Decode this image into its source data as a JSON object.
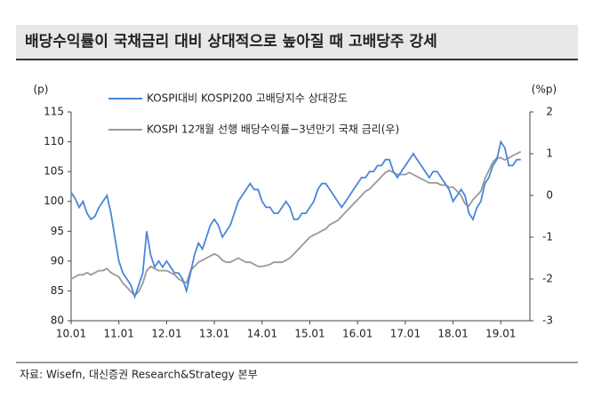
{
  "title": "배당수익률이 국채금리 대비 상대적으로 높아질 때 고배당주 강세",
  "source": "자료: Wisefn, 대신증권 Research&Strategy 본부",
  "chart_data": {
    "type": "line",
    "y_label": "(p)",
    "y2_label": "(%p)",
    "x": [
      "10.01",
      "10.02",
      "10.03",
      "10.04",
      "10.05",
      "10.06",
      "10.07",
      "10.08",
      "10.09",
      "10.10",
      "10.11",
      "10.12",
      "11.01",
      "11.02",
      "11.03",
      "11.04",
      "11.05",
      "11.06",
      "11.07",
      "11.08",
      "11.09",
      "11.10",
      "11.11",
      "11.12",
      "12.01",
      "12.02",
      "12.03",
      "12.04",
      "12.05",
      "12.06",
      "12.07",
      "12.08",
      "12.09",
      "12.10",
      "12.11",
      "12.12",
      "13.01",
      "13.02",
      "13.03",
      "13.04",
      "13.05",
      "13.06",
      "13.07",
      "13.08",
      "13.09",
      "13.10",
      "13.11",
      "13.12",
      "14.01",
      "14.02",
      "14.03",
      "14.04",
      "14.05",
      "14.06",
      "14.07",
      "14.08",
      "14.09",
      "14.10",
      "14.11",
      "14.12",
      "15.01",
      "15.02",
      "15.03",
      "15.04",
      "15.05",
      "15.06",
      "15.07",
      "15.08",
      "15.09",
      "15.10",
      "15.11",
      "15.12",
      "16.01",
      "16.02",
      "16.03",
      "16.04",
      "16.05",
      "16.06",
      "16.07",
      "16.08",
      "16.09",
      "16.10",
      "16.11",
      "16.12",
      "17.01",
      "17.02",
      "17.03",
      "17.04",
      "17.05",
      "17.06",
      "17.07",
      "17.08",
      "17.09",
      "17.10",
      "17.11",
      "17.12",
      "18.01",
      "18.02",
      "18.03",
      "18.04",
      "18.05",
      "18.06",
      "18.07",
      "18.08",
      "18.09",
      "18.10",
      "18.11",
      "18.12",
      "19.01",
      "19.02",
      "19.03",
      "19.04",
      "19.05",
      "19.06"
    ],
    "xticks": [
      "10.01",
      "11.01",
      "12.01",
      "13.01",
      "14.01",
      "15.01",
      "16.01",
      "17.01",
      "18.01",
      "19.01"
    ],
    "ylim": [
      80,
      115
    ],
    "yticks": [
      80,
      85,
      90,
      95,
      100,
      105,
      110,
      115
    ],
    "y2lim": [
      -3,
      2
    ],
    "y2ticks": [
      -3,
      -2,
      -1,
      0,
      1,
      2
    ],
    "series": [
      {
        "name": "KOSPI대비 KOSPI200 고배당지수 상대강도",
        "color": "#4a86d8",
        "values": [
          101.5,
          100.5,
          99,
          100,
          98,
          97,
          97.5,
          99,
          100,
          101,
          98,
          94,
          90,
          88,
          87,
          86,
          84,
          86,
          88,
          95,
          91,
          89,
          90,
          89,
          90,
          89,
          88,
          88,
          87,
          85,
          88,
          91,
          93,
          92,
          94,
          96,
          97,
          96,
          94,
          95,
          96,
          98,
          100,
          101,
          102,
          103,
          102,
          102,
          100,
          99,
          99,
          98,
          98,
          99,
          100,
          99,
          97,
          97,
          98,
          98,
          99,
          100,
          102,
          103,
          103,
          102,
          101,
          100,
          99,
          100,
          101,
          102,
          103,
          104,
          104,
          105,
          105,
          106,
          106,
          107,
          107,
          105,
          104,
          105,
          106,
          107,
          108,
          107,
          106,
          105,
          104,
          105,
          105,
          104,
          103,
          102,
          100,
          101,
          102,
          101,
          98,
          97,
          99,
          100,
          103,
          104,
          106,
          107,
          110,
          109,
          106,
          106,
          107,
          107
        ]
      },
      {
        "name": "KOSPI 12개월 선행 배당수익률−3년만기 국채 금리(우)",
        "color": "#999999",
        "axis": "y2",
        "values": [
          -2.0,
          -1.95,
          -1.9,
          -1.9,
          -1.85,
          -1.9,
          -1.85,
          -1.8,
          -1.8,
          -1.75,
          -1.85,
          -1.9,
          -1.95,
          -2.1,
          -2.2,
          -2.3,
          -2.4,
          -2.3,
          -2.1,
          -1.8,
          -1.7,
          -1.75,
          -1.8,
          -1.8,
          -1.8,
          -1.85,
          -1.9,
          -2.0,
          -2.05,
          -2.1,
          -1.8,
          -1.7,
          -1.6,
          -1.55,
          -1.5,
          -1.45,
          -1.4,
          -1.45,
          -1.55,
          -1.6,
          -1.6,
          -1.55,
          -1.5,
          -1.55,
          -1.6,
          -1.6,
          -1.65,
          -1.7,
          -1.7,
          -1.68,
          -1.65,
          -1.6,
          -1.6,
          -1.6,
          -1.55,
          -1.5,
          -1.4,
          -1.3,
          -1.2,
          -1.1,
          -1.0,
          -0.95,
          -0.9,
          -0.85,
          -0.8,
          -0.7,
          -0.65,
          -0.6,
          -0.5,
          -0.4,
          -0.3,
          -0.2,
          -0.1,
          0.0,
          0.1,
          0.15,
          0.25,
          0.35,
          0.45,
          0.55,
          0.6,
          0.55,
          0.5,
          0.5,
          0.5,
          0.55,
          0.5,
          0.45,
          0.4,
          0.35,
          0.3,
          0.3,
          0.3,
          0.25,
          0.25,
          0.2,
          0.2,
          0.1,
          0.0,
          -0.2,
          -0.25,
          -0.1,
          0.0,
          0.1,
          0.4,
          0.6,
          0.8,
          0.9,
          0.9,
          0.85,
          0.9,
          0.95,
          1.0,
          1.05
        ]
      }
    ]
  }
}
